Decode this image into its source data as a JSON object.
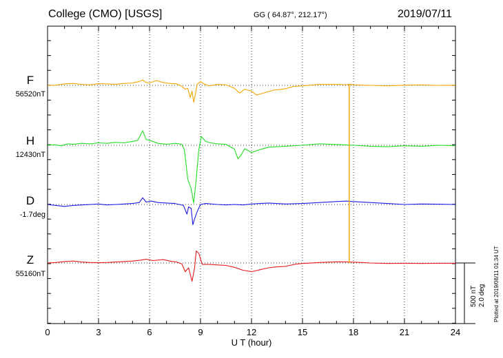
{
  "header": {
    "title": "College (CMO)  [USGS]",
    "coords": "GG ( 64.87°, 212.17°)",
    "date": "2019/07/11"
  },
  "footer": {
    "plotted": "Plotted at 2019/08/11 01:34 UT"
  },
  "scale": {
    "line1": "500 nT",
    "line2": "2.0 deg"
  },
  "chart_data": {
    "type": "line",
    "xlabel": "U T (hour)",
    "xlim": [
      0,
      24
    ],
    "xticks": [
      "0",
      "3",
      "6",
      "9",
      "12",
      "15",
      "18",
      "21",
      "24"
    ],
    "grid": true,
    "series": [
      {
        "name": "F",
        "baseline_label": "56520nT",
        "color": "#f5a400",
        "points": [
          [
            0,
            0
          ],
          [
            0.5,
            5
          ],
          [
            1,
            30
          ],
          [
            1.5,
            40
          ],
          [
            2,
            20
          ],
          [
            2.5,
            10
          ],
          [
            3,
            35
          ],
          [
            3.5,
            30
          ],
          [
            4,
            20
          ],
          [
            4.5,
            40
          ],
          [
            5,
            50
          ],
          [
            5.4,
            80
          ],
          [
            5.6,
            110
          ],
          [
            5.8,
            60
          ],
          [
            6,
            50
          ],
          [
            6.4,
            100
          ],
          [
            6.8,
            60
          ],
          [
            7.2,
            40
          ],
          [
            7.6,
            30
          ],
          [
            7.9,
            -20
          ],
          [
            8.1,
            -80
          ],
          [
            8.25,
            -60
          ],
          [
            8.4,
            -250
          ],
          [
            8.5,
            -120
          ],
          [
            8.6,
            -350
          ],
          [
            8.7,
            -180
          ],
          [
            8.8,
            20
          ],
          [
            9,
            80
          ],
          [
            9.2,
            30
          ],
          [
            9.5,
            -10
          ],
          [
            10,
            20
          ],
          [
            10.5,
            10
          ],
          [
            11,
            -60
          ],
          [
            11.3,
            -160
          ],
          [
            11.6,
            -80
          ],
          [
            12,
            -120
          ],
          [
            12.3,
            -200
          ],
          [
            12.8,
            -150
          ],
          [
            13.3,
            -100
          ],
          [
            14,
            -70
          ],
          [
            14.5,
            -20
          ],
          [
            15,
            -10
          ],
          [
            16,
            20
          ],
          [
            17,
            20
          ],
          [
            17.6,
            15
          ],
          [
            17.8,
            20
          ],
          [
            18,
            10
          ],
          [
            19,
            0
          ],
          [
            20,
            -10
          ],
          [
            21,
            5
          ],
          [
            22,
            10
          ],
          [
            23,
            0
          ],
          [
            24,
            5
          ]
        ]
      },
      {
        "name": "H",
        "baseline_label": "12430nT",
        "color": "#22dd22",
        "points": [
          [
            0,
            0
          ],
          [
            0.4,
            10
          ],
          [
            0.8,
            -10
          ],
          [
            1.2,
            30
          ],
          [
            1.5,
            20
          ],
          [
            2,
            40
          ],
          [
            2.5,
            30
          ],
          [
            3,
            50
          ],
          [
            3.5,
            40
          ],
          [
            4,
            60
          ],
          [
            4.5,
            50
          ],
          [
            5,
            80
          ],
          [
            5.3,
            100
          ],
          [
            5.6,
            300
          ],
          [
            5.8,
            120
          ],
          [
            6.1,
            90
          ],
          [
            6.5,
            40
          ],
          [
            7,
            20
          ],
          [
            7.5,
            40
          ],
          [
            7.9,
            20
          ],
          [
            8.05,
            -100
          ],
          [
            8.25,
            -700
          ],
          [
            8.45,
            -900
          ],
          [
            8.6,
            -1200
          ],
          [
            8.75,
            -700
          ],
          [
            8.9,
            -100
          ],
          [
            9.05,
            180
          ],
          [
            9.3,
            80
          ],
          [
            9.6,
            50
          ],
          [
            10,
            30
          ],
          [
            10.5,
            20
          ],
          [
            11,
            -80
          ],
          [
            11.2,
            -280
          ],
          [
            11.4,
            -200
          ],
          [
            11.6,
            -70
          ],
          [
            12,
            -150
          ],
          [
            12.5,
            -90
          ],
          [
            13,
            -40
          ],
          [
            14,
            -20
          ],
          [
            15,
            0
          ],
          [
            16,
            30
          ],
          [
            17,
            15
          ],
          [
            18,
            0
          ],
          [
            19,
            -20
          ],
          [
            20,
            -30
          ],
          [
            21,
            -10
          ],
          [
            22,
            -20
          ],
          [
            23,
            0
          ],
          [
            24,
            -10
          ]
        ]
      },
      {
        "name": "D",
        "baseline_label": "-1.7deg",
        "color": "#1a1ae6",
        "points": [
          [
            0,
            0
          ],
          [
            0.5,
            -20
          ],
          [
            1,
            -40
          ],
          [
            1.5,
            -20
          ],
          [
            2,
            -10
          ],
          [
            2.5,
            0
          ],
          [
            3,
            10
          ],
          [
            3.5,
            -10
          ],
          [
            4,
            0
          ],
          [
            4.5,
            10
          ],
          [
            5,
            20
          ],
          [
            5.4,
            40
          ],
          [
            5.6,
            140
          ],
          [
            5.8,
            50
          ],
          [
            6.1,
            70
          ],
          [
            6.5,
            40
          ],
          [
            7,
            30
          ],
          [
            7.5,
            20
          ],
          [
            8,
            -20
          ],
          [
            8.2,
            -200
          ],
          [
            8.3,
            -50
          ],
          [
            8.45,
            -80
          ],
          [
            8.55,
            -420
          ],
          [
            8.65,
            -300
          ],
          [
            8.8,
            -150
          ],
          [
            9,
            0
          ],
          [
            9.3,
            20
          ],
          [
            10,
            0
          ],
          [
            10.5,
            -10
          ],
          [
            11,
            0
          ],
          [
            11.5,
            -10
          ],
          [
            12,
            10
          ],
          [
            12.5,
            20
          ],
          [
            13,
            30
          ],
          [
            14,
            10
          ],
          [
            15,
            20
          ],
          [
            16,
            40
          ],
          [
            17,
            60
          ],
          [
            17.6,
            70
          ],
          [
            18,
            60
          ],
          [
            19,
            40
          ],
          [
            20,
            20
          ],
          [
            21,
            0
          ],
          [
            22,
            10
          ],
          [
            23,
            5
          ],
          [
            24,
            0
          ]
        ]
      },
      {
        "name": "Z",
        "baseline_label": "55160nT",
        "color": "#e61a1a",
        "points": [
          [
            0,
            0
          ],
          [
            0.5,
            10
          ],
          [
            1,
            30
          ],
          [
            1.5,
            40
          ],
          [
            2,
            20
          ],
          [
            2.5,
            10
          ],
          [
            3,
            5
          ],
          [
            3.5,
            10
          ],
          [
            4,
            20
          ],
          [
            4.5,
            30
          ],
          [
            5,
            40
          ],
          [
            5.5,
            60
          ],
          [
            5.8,
            80
          ],
          [
            6.2,
            50
          ],
          [
            6.8,
            70
          ],
          [
            7.2,
            40
          ],
          [
            7.6,
            20
          ],
          [
            7.9,
            -20
          ],
          [
            8.1,
            -180
          ],
          [
            8.3,
            -100
          ],
          [
            8.5,
            -380
          ],
          [
            8.65,
            -100
          ],
          [
            8.75,
            250
          ],
          [
            8.9,
            200
          ],
          [
            9.1,
            -30
          ],
          [
            9.5,
            -30
          ],
          [
            10,
            -40
          ],
          [
            10.5,
            -50
          ],
          [
            11,
            -90
          ],
          [
            11.5,
            -150
          ],
          [
            12,
            -180
          ],
          [
            12.5,
            -140
          ],
          [
            13,
            -100
          ],
          [
            13.5,
            -80
          ],
          [
            14,
            -70
          ],
          [
            14.5,
            -30
          ],
          [
            15,
            -10
          ],
          [
            16,
            10
          ],
          [
            17,
            25
          ],
          [
            17.8,
            20
          ],
          [
            18.5,
            10
          ],
          [
            19,
            0
          ],
          [
            20,
            -10
          ],
          [
            21,
            -5
          ],
          [
            22,
            -10
          ],
          [
            23,
            -5
          ],
          [
            24,
            -5
          ]
        ]
      }
    ],
    "vertical_marker": {
      "series": "F",
      "x": 17.75,
      "from_series": "F",
      "to_series": "Z"
    }
  }
}
